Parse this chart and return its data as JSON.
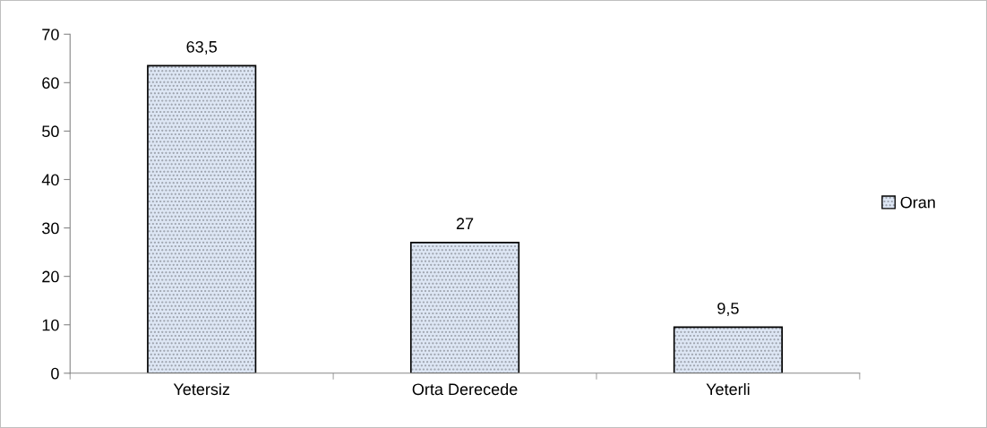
{
  "chart_data": {
    "type": "bar",
    "categories": [
      "Yetersiz",
      "Orta Derecede",
      "Yeterli"
    ],
    "series": [
      {
        "name": "Oran",
        "color": "#dde6f4",
        "values": [
          63.5,
          27,
          9.5
        ],
        "value_labels": [
          "63,5",
          "27",
          "9,5"
        ]
      }
    ],
    "ylim": [
      0,
      70
    ],
    "yticks": [
      0,
      10,
      20,
      30,
      40,
      50,
      60,
      70
    ],
    "grid": false,
    "legend": "right"
  }
}
